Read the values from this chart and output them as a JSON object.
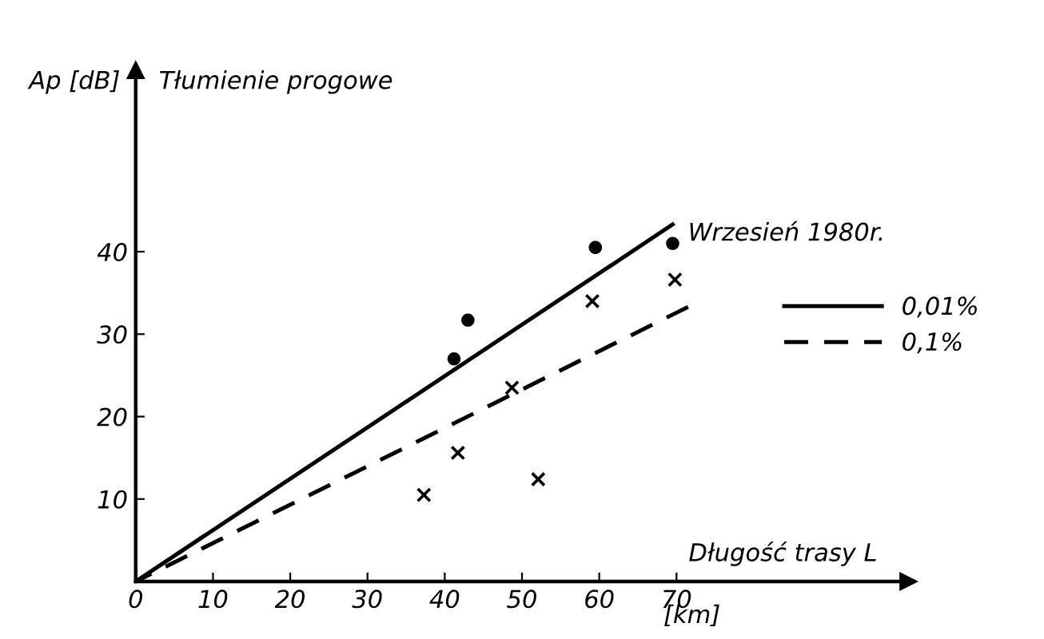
{
  "chart_data": {
    "type": "line",
    "xlabel": "Długość trasy L",
    "ylabel": "Ap [dB]",
    "annotations": [
      "Tłumienie progowe",
      "Wrzesień 1980r.",
      "[km]"
    ],
    "series": [
      {
        "name": "0,01%",
        "color": "#000000",
        "line_style": "solid",
        "x": [
          0,
          69.5
        ],
        "values": [
          0,
          43.3
        ]
      },
      {
        "name": "0,1%",
        "color": "#000000",
        "line_style": "dashed",
        "x": [
          0,
          71.5
        ],
        "values": [
          0,
          33.3
        ]
      },
      {
        "type": "scatter",
        "color": "#000000",
        "marker": "circle",
        "x": [
          41.2,
          43,
          59.5,
          69.5
        ],
        "values": [
          27,
          31.7,
          40.5,
          41
        ]
      },
      {
        "type": "scatter",
        "color": "#000000",
        "marker": "cross",
        "x": [
          37.3,
          41.7,
          48.7,
          52.1,
          59.1,
          69.8
        ],
        "values": [
          10.5,
          15.6,
          23.5,
          12.4,
          34,
          36.6
        ]
      }
    ],
    "xlim": [
      0,
      100
    ],
    "ylim": [
      0,
      62
    ],
    "xticks": [
      0,
      10,
      20,
      30,
      40,
      50,
      60,
      70
    ],
    "yticks": [
      10,
      20,
      30,
      40
    ],
    "grid": false,
    "legend": "right"
  }
}
